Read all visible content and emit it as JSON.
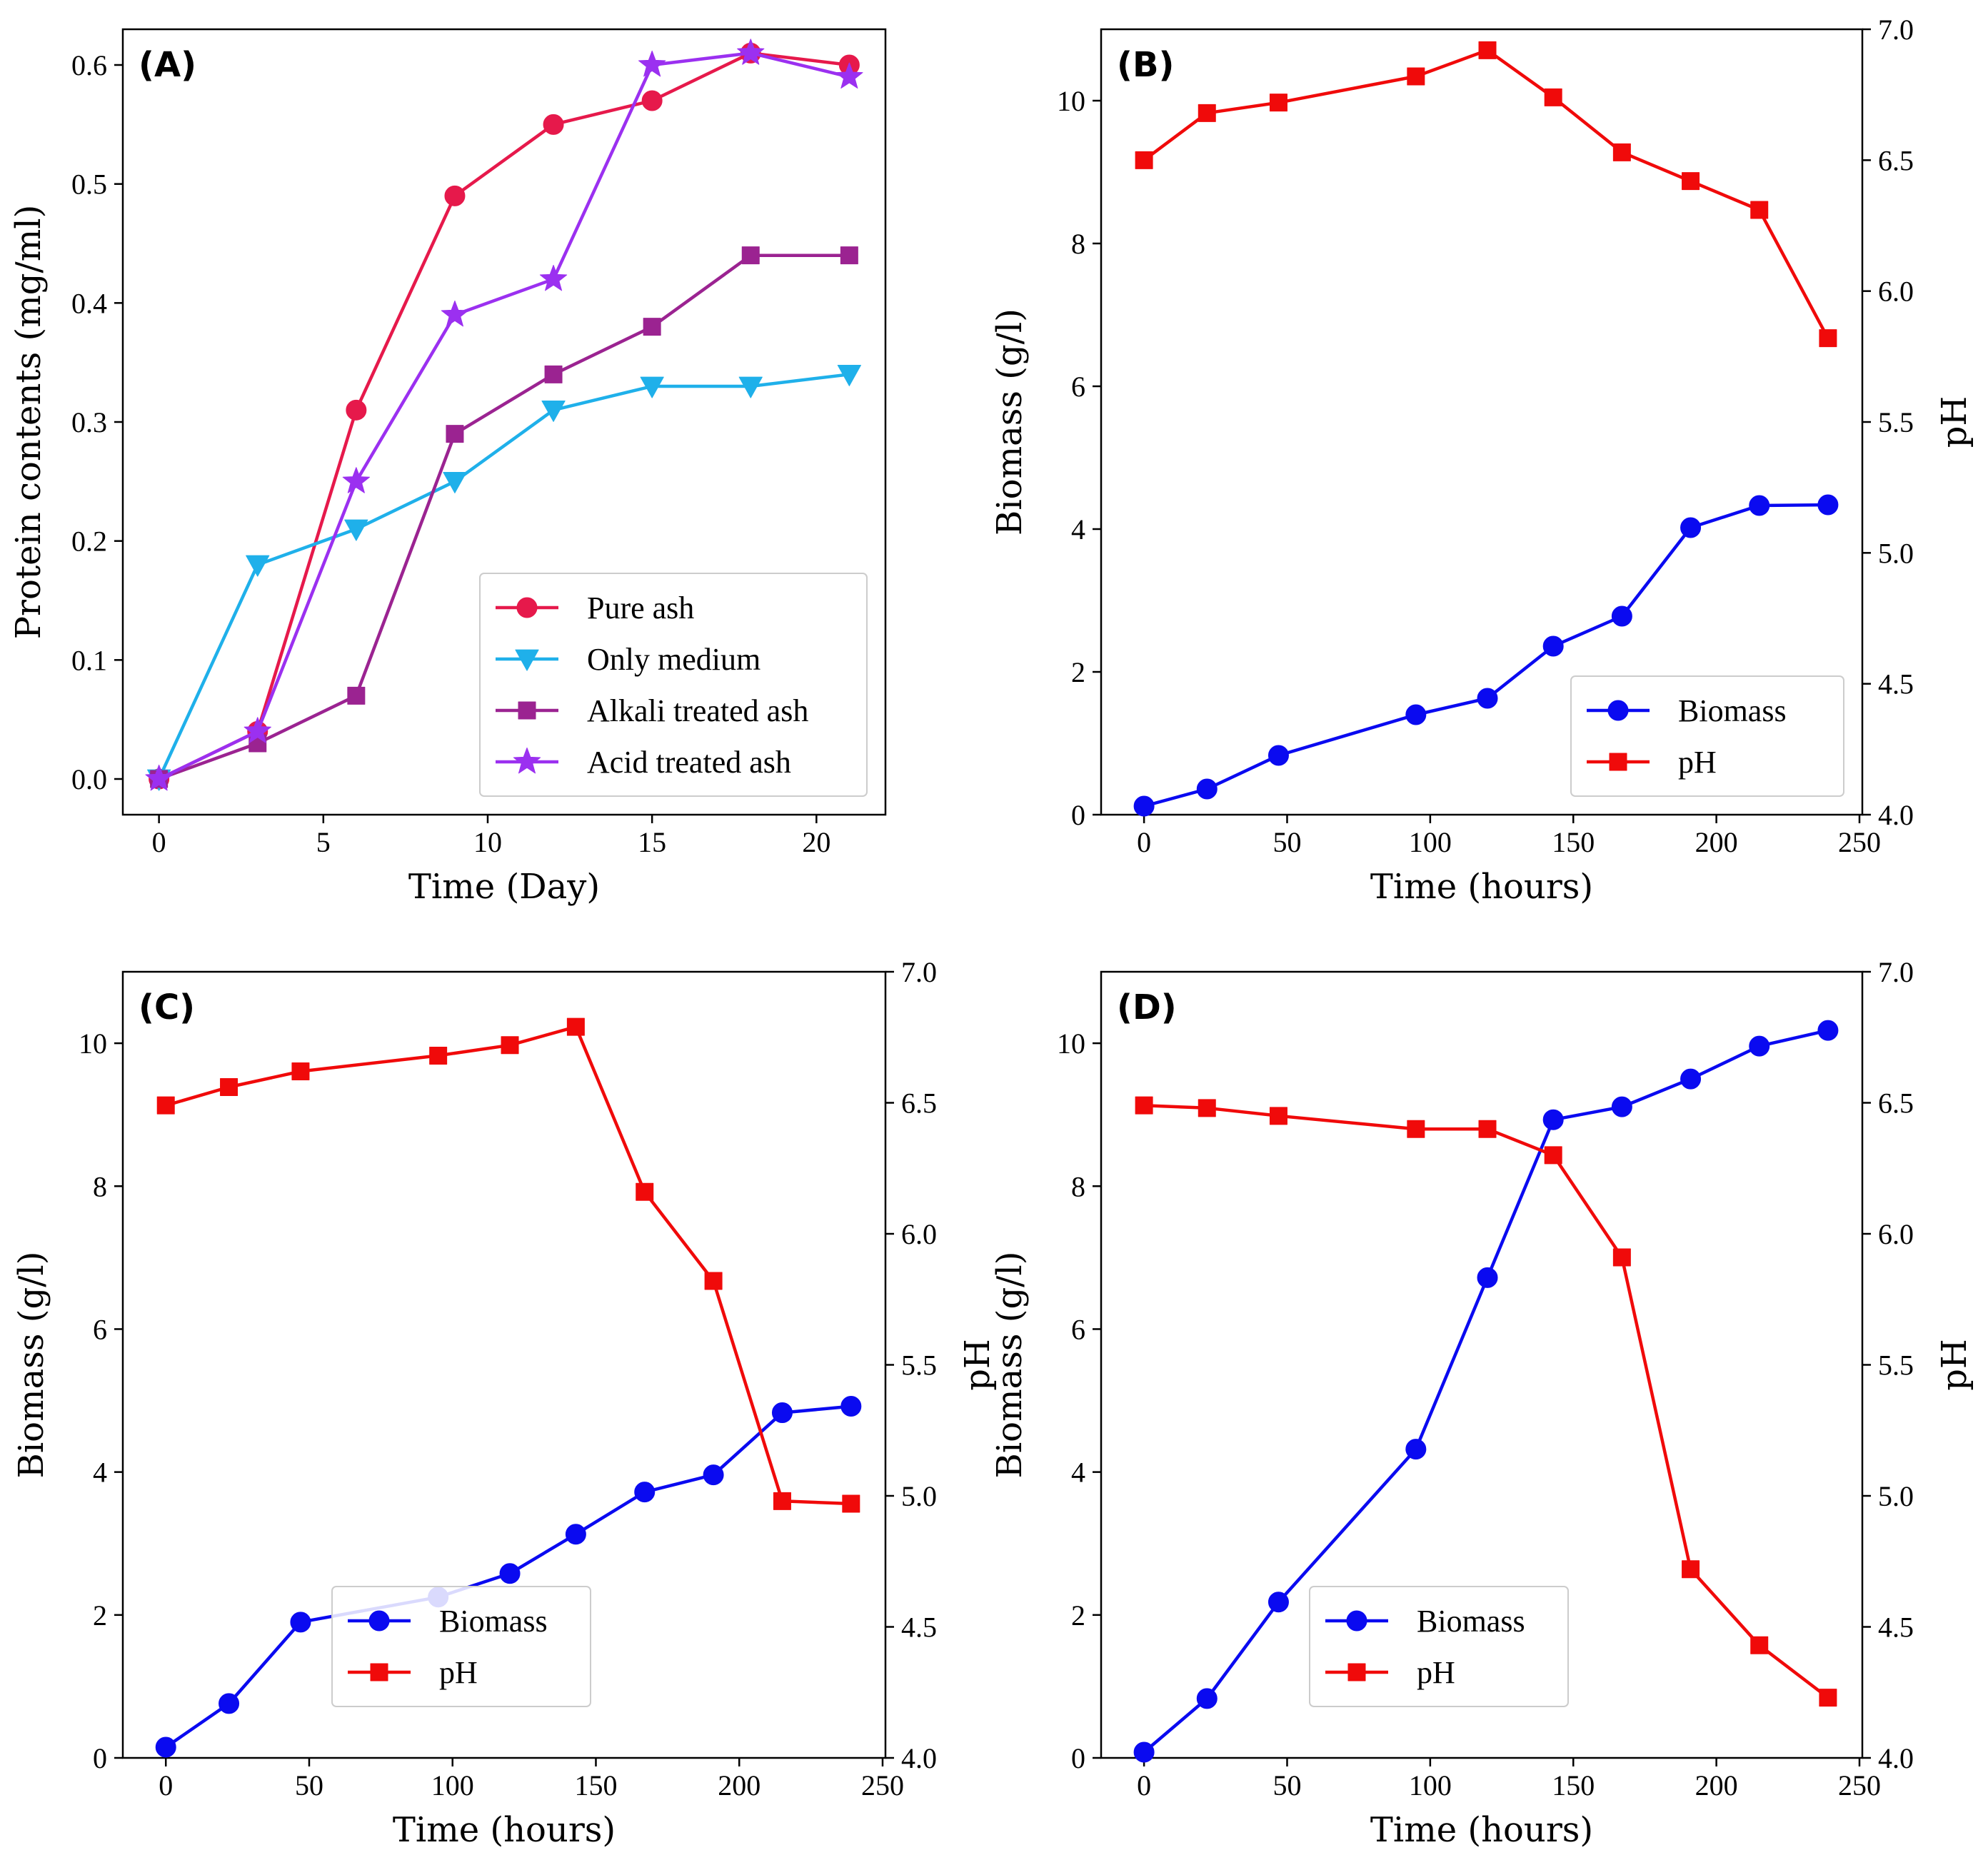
{
  "chart_data": [
    {
      "type": "line",
      "panel_label": "(A)",
      "xlabel": "Time (Day)",
      "ylabel": "Protein contents (mg/ml)",
      "xlim": [
        -1.1,
        22.1
      ],
      "ylim": [
        -0.03,
        0.63
      ],
      "xticks": [
        0,
        5,
        10,
        15,
        20
      ],
      "xtick_labels": [
        "0",
        "5",
        "10",
        "15",
        "20"
      ],
      "yticks": [
        0.0,
        0.1,
        0.2,
        0.3,
        0.4,
        0.5,
        0.6
      ],
      "ytick_labels": [
        "0.0",
        "0.1",
        "0.2",
        "0.3",
        "0.4",
        "0.5",
        "0.6"
      ],
      "legend_position": "lower-right",
      "grid": false,
      "x": [
        0,
        3,
        6,
        9,
        12,
        15,
        18,
        21
      ],
      "series": [
        {
          "name": "Pure ash",
          "color": "#e6194b",
          "marker": "circle",
          "values": [
            0.0,
            0.04,
            0.31,
            0.49,
            0.55,
            0.57,
            0.61,
            0.6
          ]
        },
        {
          "name": "Only medium",
          "color": "#1fb0ea",
          "marker": "triangle-down",
          "values": [
            0.0,
            0.18,
            0.21,
            0.25,
            0.31,
            0.33,
            0.33,
            0.34
          ]
        },
        {
          "name": "Alkali treated ash",
          "color": "#9b2391",
          "marker": "square",
          "values": [
            0.0,
            0.03,
            0.07,
            0.29,
            0.34,
            0.38,
            0.44,
            0.44
          ]
        },
        {
          "name": "Acid treated ash",
          "color": "#9b30f0",
          "marker": "star",
          "values": [
            0.0,
            0.04,
            0.25,
            0.39,
            0.42,
            0.6,
            0.61,
            0.59
          ]
        }
      ]
    },
    {
      "type": "line",
      "panel_label": "(B)",
      "xlabel": "Time (hours)",
      "ylabel": "Biomass (g/l)",
      "y2label": "pH",
      "xlim": [
        -15,
        251
      ],
      "ylim": [
        0,
        11
      ],
      "y2lim": [
        4.0,
        7.0
      ],
      "xticks": [
        0,
        50,
        100,
        150,
        200,
        250
      ],
      "xtick_labels": [
        "0",
        "50",
        "100",
        "150",
        "200",
        "250"
      ],
      "yticks": [
        0,
        2,
        4,
        6,
        8,
        10
      ],
      "ytick_labels": [
        "0",
        "2",
        "4",
        "6",
        "8",
        "10"
      ],
      "y2ticks": [
        4.0,
        4.5,
        5.0,
        5.5,
        6.0,
        6.5,
        7.0
      ],
      "y2tick_labels": [
        "4.0",
        "4.5",
        "5.0",
        "5.5",
        "6.0",
        "6.5",
        "7.0"
      ],
      "legend_position": "lower-right",
      "grid": false,
      "x": [
        0,
        22,
        47,
        95,
        120,
        143,
        167,
        191,
        215,
        239
      ],
      "series": [
        {
          "name": "Biomass",
          "axis": "left",
          "color": "#0a0af0",
          "marker": "circle",
          "values": [
            0.12,
            0.36,
            0.83,
            1.4,
            1.63,
            2.36,
            2.78,
            4.02,
            4.33,
            4.34
          ]
        },
        {
          "name": "pH",
          "axis": "right",
          "color": "#f00a0a",
          "marker": "square",
          "values": [
            6.5,
            6.68,
            6.72,
            6.82,
            6.92,
            6.74,
            6.53,
            6.42,
            6.31,
            5.82
          ]
        }
      ]
    },
    {
      "type": "line",
      "panel_label": "(C)",
      "xlabel": "Time (hours)",
      "ylabel": "Biomass (g/l)",
      "y2label": "pH",
      "xlim": [
        -15,
        251
      ],
      "ylim": [
        0,
        11
      ],
      "y2lim": [
        4.0,
        7.0
      ],
      "xticks": [
        0,
        50,
        100,
        150,
        200,
        250
      ],
      "xtick_labels": [
        "0",
        "50",
        "100",
        "150",
        "200",
        "250"
      ],
      "yticks": [
        0,
        2,
        4,
        6,
        8,
        10
      ],
      "ytick_labels": [
        "0",
        "2",
        "4",
        "6",
        "8",
        "10"
      ],
      "y2ticks": [
        4.0,
        4.5,
        5.0,
        5.5,
        6.0,
        6.5,
        7.0
      ],
      "y2tick_labels": [
        "4.0",
        "4.5",
        "5.0",
        "5.5",
        "6.0",
        "6.5",
        "7.0"
      ],
      "legend_position": "lower-center",
      "grid": false,
      "x": [
        0,
        22,
        47,
        95,
        120,
        143,
        167,
        191,
        215,
        239
      ],
      "series": [
        {
          "name": "Biomass",
          "axis": "left",
          "color": "#0a0af0",
          "marker": "circle",
          "values": [
            0.15,
            0.76,
            1.9,
            2.25,
            2.58,
            3.13,
            3.72,
            3.96,
            4.83,
            4.92
          ]
        },
        {
          "name": "pH",
          "axis": "right",
          "color": "#f00a0a",
          "marker": "square",
          "values": [
            6.49,
            6.56,
            6.62,
            6.68,
            6.72,
            6.79,
            6.16,
            5.82,
            4.98,
            4.97
          ]
        }
      ]
    },
    {
      "type": "line",
      "panel_label": "(D)",
      "xlabel": "Time (hours)",
      "ylabel": "Biomass (g/l)",
      "y2label": "pH",
      "xlim": [
        -15,
        251
      ],
      "ylim": [
        0,
        11
      ],
      "y2lim": [
        4.0,
        7.0
      ],
      "xticks": [
        0,
        50,
        100,
        150,
        200,
        250
      ],
      "xtick_labels": [
        "0",
        "50",
        "100",
        "150",
        "200",
        "250"
      ],
      "yticks": [
        0,
        2,
        4,
        6,
        8,
        10
      ],
      "ytick_labels": [
        "0",
        "2",
        "4",
        "6",
        "8",
        "10"
      ],
      "y2ticks": [
        4.0,
        4.5,
        5.0,
        5.5,
        6.0,
        6.5,
        7.0
      ],
      "y2tick_labels": [
        "4.0",
        "4.5",
        "5.0",
        "5.5",
        "6.0",
        "6.5",
        "7.0"
      ],
      "legend_position": "lower-center",
      "grid": false,
      "x": [
        0,
        22,
        47,
        95,
        120,
        143,
        167,
        191,
        215,
        239
      ],
      "series": [
        {
          "name": "Biomass",
          "axis": "left",
          "color": "#0a0af0",
          "marker": "circle",
          "values": [
            0.08,
            0.83,
            2.18,
            4.32,
            6.72,
            8.93,
            9.11,
            9.5,
            9.96,
            10.18
          ]
        },
        {
          "name": "pH",
          "axis": "right",
          "color": "#f00a0a",
          "marker": "square",
          "values": [
            6.49,
            6.48,
            6.45,
            6.4,
            6.4,
            6.3,
            5.91,
            4.72,
            4.43,
            4.23
          ]
        }
      ]
    }
  ]
}
